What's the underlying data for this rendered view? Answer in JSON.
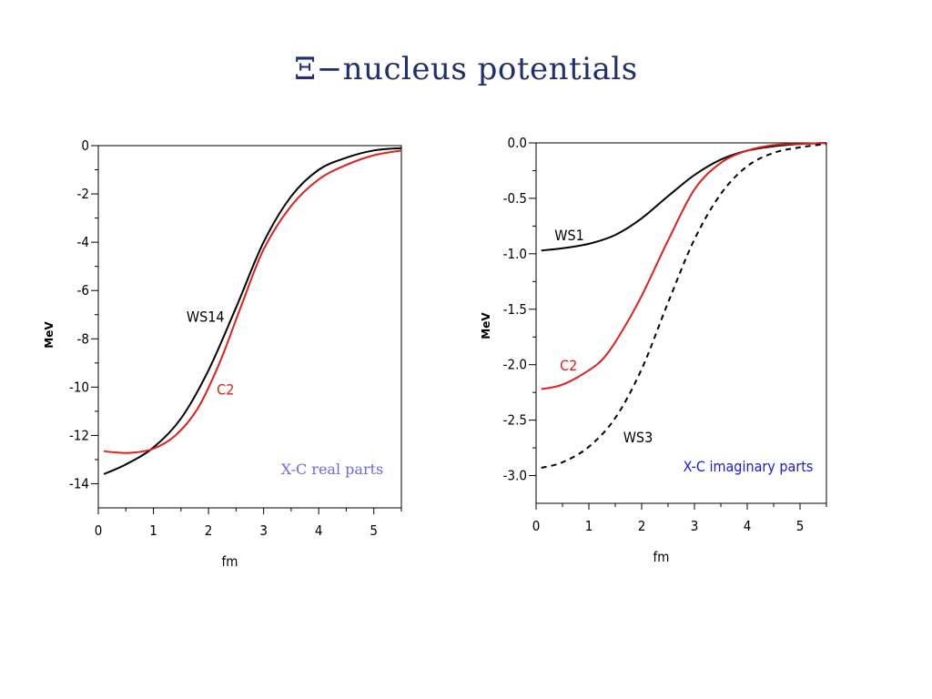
{
  "slide": {
    "title": "Ξ−nucleus potentials"
  },
  "chart_data": [
    {
      "type": "line",
      "xlabel": "fm",
      "ylabel": "MeV",
      "xlim": [
        0,
        5.5
      ],
      "ylim": [
        -15,
        0
      ],
      "x_ticks": [
        0,
        1,
        2,
        3,
        4,
        5
      ],
      "y_ticks": [
        0,
        -2,
        -4,
        -6,
        -8,
        -10,
        -12,
        -14
      ],
      "grid": false,
      "annotation": {
        "text": "X-C real parts",
        "color": "#6a6ae8",
        "style": "serif"
      },
      "series": [
        {
          "name": "WS14",
          "color": "#000000",
          "dash": "",
          "label_pos": [
            1.6,
            -7.3
          ],
          "x": [
            0.1,
            0.5,
            1.0,
            1.5,
            2.0,
            2.5,
            3.0,
            3.5,
            4.0,
            4.5,
            5.0,
            5.5
          ],
          "y": [
            -13.6,
            -13.2,
            -12.5,
            -11.3,
            -9.3,
            -6.7,
            -4.0,
            -2.1,
            -1.0,
            -0.5,
            -0.2,
            -0.1
          ]
        },
        {
          "name": "C2",
          "color": "#e0201b",
          "dash": "",
          "label_pos": [
            2.15,
            -10.3
          ],
          "x": [
            0.1,
            0.3,
            0.6,
            1.0,
            1.4,
            1.8,
            2.2,
            2.6,
            3.0,
            3.5,
            4.0,
            4.5,
            5.0,
            5.5
          ],
          "y": [
            -12.65,
            -12.7,
            -12.72,
            -12.55,
            -12.0,
            -10.9,
            -9.0,
            -6.6,
            -4.3,
            -2.5,
            -1.4,
            -0.8,
            -0.4,
            -0.2
          ]
        }
      ]
    },
    {
      "type": "line",
      "xlabel": "fm",
      "ylabel": "MeV",
      "xlim": [
        0,
        5.5
      ],
      "ylim": [
        -3.25,
        0
      ],
      "x_ticks": [
        0,
        1,
        2,
        3,
        4,
        5
      ],
      "y_ticks": [
        "0.0",
        "-0.5",
        "-1.0",
        "-1.5",
        "-2.0",
        "-2.5",
        "-3.0"
      ],
      "grid": false,
      "annotation": {
        "text": "X-C imaginary parts",
        "color": "#1a1ad6",
        "style": "sans"
      },
      "series": [
        {
          "name": "WS1",
          "color": "#000000",
          "dash": "",
          "label_pos": [
            0.35,
            -0.88
          ],
          "x": [
            0.1,
            0.5,
            1.0,
            1.5,
            2.0,
            2.5,
            3.0,
            3.5,
            4.0,
            4.5,
            5.0,
            5.5
          ],
          "y": [
            -0.97,
            -0.95,
            -0.91,
            -0.83,
            -0.68,
            -0.48,
            -0.29,
            -0.15,
            -0.07,
            -0.03,
            -0.01,
            0.0
          ]
        },
        {
          "name": "C2",
          "color": "#e0201b",
          "dash": "",
          "label_pos": [
            0.45,
            -2.05
          ],
          "x": [
            0.1,
            0.5,
            1.0,
            1.3,
            1.6,
            2.0,
            2.5,
            3.0,
            3.5,
            4.0,
            4.5,
            5.0,
            5.5
          ],
          "y": [
            -2.22,
            -2.18,
            -2.05,
            -1.93,
            -1.72,
            -1.38,
            -0.88,
            -0.42,
            -0.18,
            -0.07,
            -0.02,
            -0.01,
            0.0
          ]
        },
        {
          "name": "WS3",
          "color": "#000000",
          "dash": "6,5",
          "label_pos": [
            1.65,
            -2.7
          ],
          "x": [
            0.1,
            0.5,
            1.0,
            1.5,
            2.0,
            2.5,
            3.0,
            3.5,
            4.0,
            4.5,
            5.0,
            5.5
          ],
          "y": [
            -2.93,
            -2.88,
            -2.74,
            -2.48,
            -2.04,
            -1.44,
            -0.87,
            -0.46,
            -0.21,
            -0.09,
            -0.04,
            -0.01
          ]
        }
      ]
    }
  ]
}
